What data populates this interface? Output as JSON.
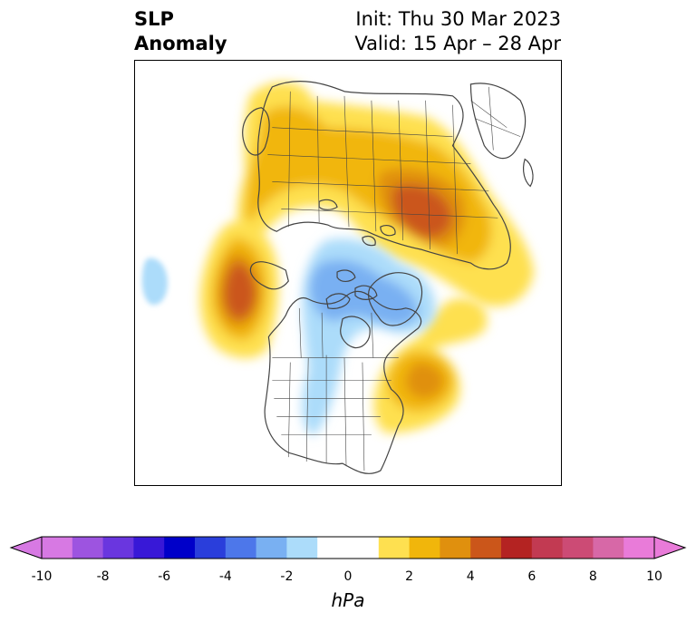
{
  "title": {
    "left_line1": "SLP",
    "left_line2": "Anomaly",
    "right_line1": "Init: Thu 30 Mar 2023",
    "right_line2": "Valid: 15 Apr – 28 Apr"
  },
  "map": {
    "projection": "polar stereographic (North America / Arctic)",
    "features": [
      "coastlines",
      "country borders",
      "state/province borders"
    ]
  },
  "colorbar": {
    "units": "hPa",
    "ticks": [
      "-10",
      "-8",
      "-6",
      "-4",
      "-2",
      "0",
      "2",
      "4",
      "6",
      "8",
      "10"
    ],
    "extend": "both",
    "bins": [
      {
        "range": [
          -10,
          -9
        ],
        "color": "#d779e3"
      },
      {
        "range": [
          -9,
          -8
        ],
        "color": "#9d54e0"
      },
      {
        "range": [
          -8,
          -7
        ],
        "color": "#6a36df"
      },
      {
        "range": [
          -7,
          -6
        ],
        "color": "#3818d7"
      },
      {
        "range": [
          -6,
          -5
        ],
        "color": "#0000c9"
      },
      {
        "range": [
          -5,
          -4
        ],
        "color": "#2a3edb"
      },
      {
        "range": [
          -4,
          -3
        ],
        "color": "#4d77ea"
      },
      {
        "range": [
          -3,
          -2
        ],
        "color": "#79b0f2"
      },
      {
        "range": [
          -2,
          -1
        ],
        "color": "#acdcfa"
      },
      {
        "range": [
          -1,
          1
        ],
        "color": "#ffffff"
      },
      {
        "range": [
          1,
          2
        ],
        "color": "#fee050"
      },
      {
        "range": [
          2,
          3
        ],
        "color": "#f1b60b"
      },
      {
        "range": [
          3,
          4
        ],
        "color": "#e0900e"
      },
      {
        "range": [
          4,
          5
        ],
        "color": "#cb561a"
      },
      {
        "range": [
          5,
          6
        ],
        "color": "#b42322"
      },
      {
        "range": [
          6,
          7
        ],
        "color": "#c23a52"
      },
      {
        "range": [
          7,
          8
        ],
        "color": "#cc4b75"
      },
      {
        "range": [
          8,
          9
        ],
        "color": "#d768a7"
      },
      {
        "range": [
          9,
          10
        ],
        "color": "#e97bd9"
      }
    ],
    "under_color": "#d779e3",
    "over_color": "#e97bd9"
  }
}
